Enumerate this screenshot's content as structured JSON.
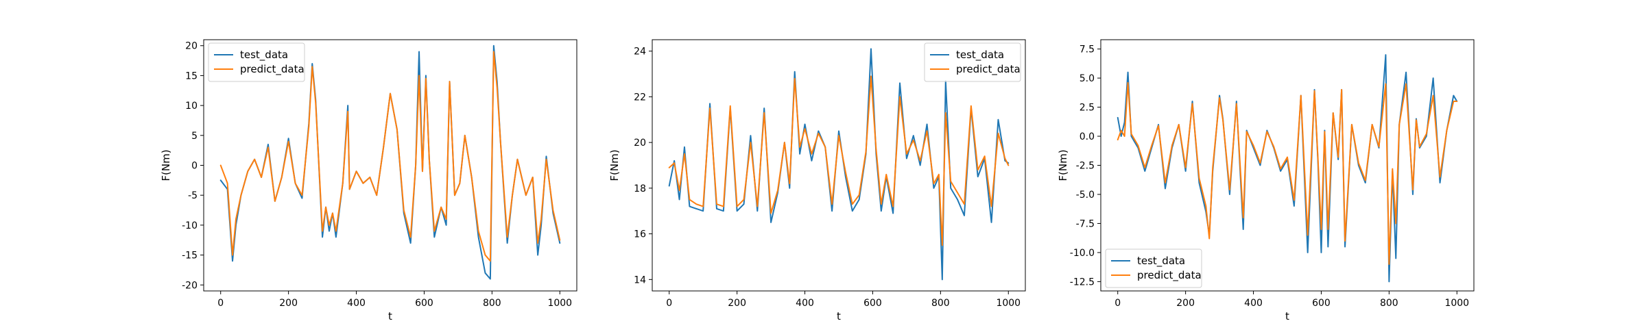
{
  "figure": {
    "background": "#ffffff"
  },
  "chart_data": [
    {
      "type": "line",
      "title": "",
      "xlabel": "t",
      "ylabel": "F(Nm)",
      "xlim": [
        -50,
        1050
      ],
      "ylim": [
        -21,
        21
      ],
      "xticks": [
        0,
        200,
        400,
        600,
        800,
        1000
      ],
      "yticks": [
        -20,
        -15,
        -10,
        -5,
        0,
        5,
        10,
        15,
        20
      ],
      "legend_location": "upper left",
      "grid": false,
      "series": [
        {
          "name": "test_data",
          "color": "#1f77b4",
          "x": [
            0,
            20,
            35,
            45,
            60,
            80,
            100,
            120,
            140,
            160,
            180,
            200,
            220,
            240,
            260,
            270,
            280,
            300,
            310,
            320,
            330,
            340,
            360,
            375,
            380,
            400,
            420,
            440,
            460,
            480,
            500,
            520,
            540,
            560,
            575,
            585,
            595,
            605,
            615,
            630,
            650,
            665,
            675,
            690,
            705,
            720,
            740,
            760,
            780,
            795,
            805,
            815,
            825,
            845,
            860,
            875,
            900,
            920,
            935,
            945,
            960,
            980,
            1000
          ],
          "y": [
            -2.5,
            -4,
            -16,
            -10,
            -5,
            -1,
            1,
            -2,
            3.5,
            -6,
            -2,
            4.5,
            -3,
            -5.5,
            7,
            17,
            11,
            -12,
            -7,
            -11,
            -8,
            -12,
            -3,
            10,
            -4,
            -1,
            -3,
            -2,
            -5,
            3,
            12,
            6,
            -8,
            -13,
            0,
            19,
            -1,
            15,
            1,
            -12,
            -7,
            -10,
            14,
            -5,
            -3,
            5,
            -2,
            -12,
            -18,
            -19,
            20,
            14,
            4,
            -13,
            -5,
            1,
            -5,
            -2,
            -15,
            -10,
            1.5,
            -8,
            -13
          ]
        },
        {
          "name": "predict_data",
          "color": "#ff7f0e",
          "x": [
            0,
            20,
            35,
            45,
            60,
            80,
            100,
            120,
            140,
            160,
            180,
            200,
            220,
            240,
            260,
            270,
            280,
            300,
            310,
            320,
            330,
            340,
            360,
            375,
            380,
            400,
            420,
            440,
            460,
            480,
            500,
            520,
            540,
            560,
            575,
            585,
            595,
            605,
            615,
            630,
            650,
            665,
            675,
            690,
            705,
            720,
            740,
            760,
            780,
            795,
            805,
            815,
            825,
            845,
            860,
            875,
            900,
            920,
            935,
            945,
            960,
            980,
            1000
          ],
          "y": [
            0,
            -3,
            -15,
            -9,
            -5,
            -1,
            1,
            -2,
            3,
            -6,
            -2,
            4,
            -3,
            -5,
            6.5,
            16.5,
            10.5,
            -11,
            -7,
            -10,
            -8,
            -11,
            -3,
            9,
            -4,
            -1,
            -3,
            -2,
            -5,
            3,
            12,
            6,
            -7.5,
            -12,
            0,
            15,
            -1,
            14.5,
            1,
            -11,
            -7,
            -9,
            14,
            -5,
            -3,
            5,
            -2,
            -11,
            -15,
            -16,
            19,
            13,
            4,
            -12,
            -5,
            1,
            -5,
            -2,
            -13,
            -9,
            1,
            -7.5,
            -12.5
          ]
        }
      ]
    },
    {
      "type": "line",
      "title": "",
      "xlabel": "t",
      "ylabel": "F(Nm)",
      "xlim": [
        -50,
        1050
      ],
      "ylim": [
        13.5,
        24.5
      ],
      "xticks": [
        0,
        200,
        400,
        600,
        800,
        1000
      ],
      "yticks": [
        14,
        16,
        18,
        20,
        22,
        24
      ],
      "legend_location": "upper right",
      "grid": false,
      "series": [
        {
          "name": "test_data",
          "color": "#1f77b4",
          "x": [
            0,
            15,
            30,
            45,
            60,
            80,
            100,
            120,
            140,
            160,
            180,
            200,
            220,
            240,
            260,
            280,
            300,
            320,
            340,
            355,
            370,
            385,
            400,
            420,
            440,
            460,
            480,
            500,
            520,
            540,
            560,
            580,
            595,
            610,
            625,
            640,
            660,
            680,
            700,
            720,
            740,
            760,
            780,
            795,
            805,
            815,
            830,
            850,
            870,
            890,
            910,
            930,
            950,
            970,
            990,
            1000
          ],
          "y": [
            18.1,
            19.2,
            17.5,
            19.8,
            17.2,
            17.1,
            17.0,
            21.7,
            17.1,
            17.0,
            21.5,
            17.0,
            17.3,
            20.3,
            17.0,
            21.5,
            16.5,
            17.8,
            20.0,
            18.0,
            23.1,
            19.5,
            20.8,
            19.2,
            20.5,
            19.8,
            17.0,
            20.5,
            18.5,
            17.0,
            17.5,
            19.5,
            24.1,
            19.5,
            17.0,
            18.5,
            16.9,
            22.6,
            19.3,
            20.3,
            19.0,
            20.8,
            18.0,
            18.5,
            14.0,
            22.7,
            18.0,
            17.5,
            16.8,
            21.5,
            18.5,
            19.3,
            16.5,
            21.0,
            19.2,
            19.1
          ]
        },
        {
          "name": "predict_data",
          "color": "#ff7f0e",
          "x": [
            0,
            15,
            30,
            45,
            60,
            80,
            100,
            120,
            140,
            160,
            180,
            200,
            220,
            240,
            260,
            280,
            300,
            320,
            340,
            355,
            370,
            385,
            400,
            420,
            440,
            460,
            480,
            500,
            520,
            540,
            560,
            580,
            595,
            610,
            625,
            640,
            660,
            680,
            700,
            720,
            740,
            760,
            780,
            795,
            805,
            815,
            830,
            850,
            870,
            890,
            910,
            930,
            950,
            970,
            990,
            1000
          ],
          "y": [
            18.9,
            19.1,
            17.9,
            19.5,
            17.5,
            17.3,
            17.2,
            21.5,
            17.3,
            17.2,
            21.6,
            17.2,
            17.5,
            20.0,
            17.2,
            21.3,
            16.9,
            17.9,
            20.0,
            18.2,
            22.8,
            19.8,
            20.6,
            19.5,
            20.4,
            19.8,
            17.3,
            20.3,
            18.7,
            17.3,
            17.7,
            19.6,
            22.9,
            19.7,
            17.3,
            18.6,
            17.2,
            22.0,
            19.5,
            20.1,
            19.2,
            20.5,
            18.2,
            18.6,
            15.5,
            21.3,
            18.3,
            17.8,
            17.3,
            21.6,
            18.8,
            19.4,
            17.2,
            20.4,
            19.3,
            19.0
          ]
        }
      ]
    },
    {
      "type": "line",
      "title": "",
      "xlabel": "t",
      "ylabel": "F(Nm)",
      "xlim": [
        -50,
        1050
      ],
      "ylim": [
        -13.3,
        8.3
      ],
      "xticks": [
        0,
        200,
        400,
        600,
        800,
        1000
      ],
      "yticks": [
        -12.5,
        -10.0,
        -7.5,
        -5.0,
        -2.5,
        0.0,
        2.5,
        5.0,
        7.5
      ],
      "legend_location": "lower left",
      "grid": false,
      "series": [
        {
          "name": "test_data",
          "color": "#1f77b4",
          "x": [
            0,
            10,
            20,
            30,
            40,
            60,
            80,
            100,
            120,
            140,
            160,
            180,
            200,
            220,
            240,
            260,
            270,
            280,
            300,
            310,
            330,
            350,
            370,
            380,
            400,
            420,
            440,
            460,
            480,
            500,
            520,
            540,
            560,
            580,
            590,
            600,
            610,
            620,
            635,
            650,
            660,
            670,
            690,
            710,
            730,
            750,
            770,
            790,
            800,
            810,
            820,
            830,
            850,
            870,
            880,
            890,
            910,
            930,
            950,
            970,
            990,
            1000
          ],
          "y": [
            1.6,
            0.0,
            1.2,
            5.5,
            0.0,
            -1.0,
            -3.0,
            -1.0,
            1.0,
            -4.5,
            -1.0,
            1.0,
            -3.0,
            3.0,
            -4.0,
            -6.5,
            -8.5,
            -3.0,
            3.5,
            1.5,
            -5.0,
            3.0,
            -8.0,
            0.5,
            -1.0,
            -2.5,
            0.5,
            -1.0,
            -3.0,
            -2.0,
            -6.0,
            3.5,
            -10.0,
            4.0,
            -2.0,
            -10.0,
            0.5,
            -9.5,
            2.0,
            -2.0,
            4.0,
            -9.5,
            1.0,
            -2.5,
            -4.0,
            1.0,
            -1.0,
            7.0,
            -12.5,
            -3.0,
            -10.5,
            1.0,
            5.5,
            -5.0,
            1.5,
            -1.0,
            0.0,
            5.0,
            -4.0,
            0.5,
            3.5,
            3.0
          ]
        },
        {
          "name": "predict_data",
          "color": "#ff7f0e",
          "x": [
            0,
            10,
            20,
            30,
            40,
            60,
            80,
            100,
            120,
            140,
            160,
            180,
            200,
            220,
            240,
            260,
            270,
            280,
            300,
            310,
            330,
            350,
            370,
            380,
            400,
            420,
            440,
            460,
            480,
            500,
            520,
            540,
            560,
            580,
            590,
            600,
            610,
            620,
            635,
            650,
            660,
            670,
            690,
            710,
            730,
            750,
            770,
            790,
            800,
            810,
            820,
            830,
            850,
            870,
            880,
            890,
            910,
            930,
            950,
            970,
            990,
            1000
          ],
          "y": [
            -0.3,
            0.5,
            0.0,
            4.6,
            0.2,
            -0.8,
            -2.7,
            -0.8,
            0.9,
            -4.0,
            -0.8,
            1.0,
            -2.7,
            2.8,
            -3.6,
            -6.0,
            -8.8,
            -2.7,
            3.3,
            1.4,
            -4.6,
            2.8,
            -7.0,
            0.4,
            -0.8,
            -2.3,
            0.4,
            -0.9,
            -2.8,
            -1.8,
            -5.5,
            3.5,
            -8.5,
            3.9,
            -1.8,
            -8.0,
            0.4,
            -8.0,
            2.0,
            -1.8,
            4.0,
            -9.0,
            1.0,
            -2.3,
            -3.8,
            1.0,
            -0.9,
            4.5,
            -11.0,
            -2.8,
            -7.5,
            1.0,
            4.5,
            -4.6,
            1.4,
            -0.9,
            0.2,
            3.5,
            -3.5,
            0.5,
            3.0,
            3.0
          ]
        }
      ]
    }
  ]
}
